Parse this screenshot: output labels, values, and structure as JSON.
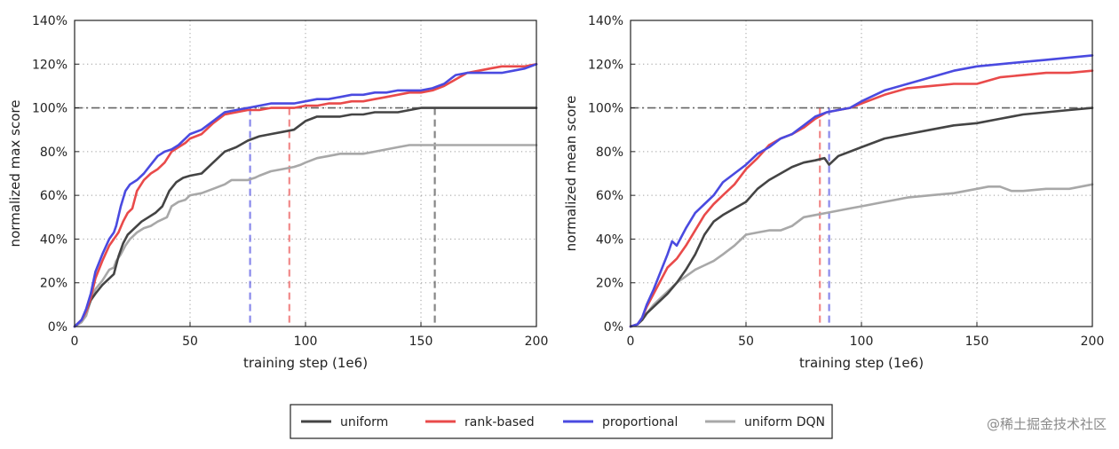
{
  "chart_data": [
    {
      "type": "line",
      "title": "",
      "xlabel": "training step (1e6)",
      "ylabel": "normalized max score",
      "xlim": [
        0,
        200
      ],
      "ylim": [
        0,
        140
      ],
      "xticks": [
        0,
        50,
        100,
        150,
        200
      ],
      "xtick_labels": [
        "0",
        "50",
        "100",
        "150",
        "200"
      ],
      "yticks": [
        0,
        20,
        40,
        60,
        80,
        100,
        120,
        140
      ],
      "ytick_labels": [
        "0%",
        "20%",
        "40%",
        "60%",
        "80%",
        "100%",
        "120%",
        "140%"
      ],
      "grid": true,
      "reference_line_y": 100,
      "series": [
        {
          "name": "uniform DQN",
          "color": "#a8a8a8",
          "x": [
            0,
            3,
            5,
            7,
            9,
            12,
            15,
            17,
            18,
            20,
            22,
            24,
            27,
            30,
            33,
            36,
            40,
            42,
            45,
            48,
            50,
            55,
            60,
            65,
            68,
            72,
            75,
            78,
            80,
            85,
            90,
            95,
            98,
            100,
            105,
            110,
            115,
            120,
            125,
            130,
            135,
            140,
            145,
            150,
            160,
            170,
            180,
            190,
            200
          ],
          "y": [
            0,
            2,
            5,
            12,
            17,
            21,
            26,
            27,
            30,
            33,
            37,
            40,
            43,
            45,
            46,
            48,
            50,
            55,
            57,
            58,
            60,
            61,
            63,
            65,
            67,
            67,
            67,
            68,
            69,
            71,
            72,
            73,
            74,
            75,
            77,
            78,
            79,
            79,
            79,
            80,
            81,
            82,
            83,
            83,
            83,
            83,
            83,
            83,
            83
          ]
        },
        {
          "name": "uniform",
          "color": "#444444",
          "x": [
            0,
            3,
            5,
            7,
            9,
            12,
            15,
            17,
            19,
            21,
            23,
            26,
            29,
            32,
            35,
            38,
            41,
            44,
            47,
            50,
            55,
            60,
            65,
            70,
            75,
            80,
            85,
            90,
            95,
            100,
            105,
            110,
            115,
            120,
            125,
            130,
            140,
            150,
            160,
            170,
            180,
            190,
            200
          ],
          "y": [
            0,
            3,
            7,
            12,
            15,
            19,
            22,
            24,
            32,
            38,
            42,
            45,
            48,
            50,
            52,
            55,
            62,
            66,
            68,
            69,
            70,
            75,
            80,
            82,
            85,
            87,
            88,
            89,
            90,
            94,
            96,
            96,
            96,
            97,
            97,
            98,
            98,
            100,
            100,
            100,
            100,
            100,
            100
          ]
        },
        {
          "name": "rank-based",
          "color": "#e94a4a",
          "x": [
            0,
            3,
            5,
            7,
            9,
            12,
            15,
            17,
            19,
            21,
            23,
            25,
            27,
            30,
            33,
            36,
            39,
            42,
            45,
            48,
            50,
            55,
            60,
            65,
            70,
            75,
            80,
            85,
            90,
            95,
            100,
            105,
            110,
            115,
            120,
            125,
            130,
            135,
            140,
            145,
            150,
            155,
            160,
            165,
            170,
            175,
            180,
            185,
            190,
            195,
            200
          ],
          "y": [
            0,
            3,
            7,
            13,
            22,
            30,
            37,
            40,
            43,
            48,
            52,
            54,
            62,
            67,
            70,
            72,
            75,
            80,
            82,
            84,
            86,
            88,
            93,
            97,
            98,
            99,
            99,
            100,
            100,
            100,
            101,
            101,
            102,
            102,
            103,
            103,
            104,
            105,
            106,
            107,
            107,
            108,
            110,
            113,
            116,
            117,
            118,
            119,
            119,
            119,
            120
          ]
        },
        {
          "name": "proportional",
          "color": "#4a4ae0",
          "x": [
            0,
            3,
            5,
            7,
            9,
            12,
            15,
            17,
            18,
            20,
            22,
            24,
            27,
            30,
            33,
            36,
            39,
            42,
            45,
            48,
            50,
            55,
            60,
            65,
            70,
            75,
            80,
            85,
            90,
            95,
            100,
            105,
            110,
            115,
            120,
            125,
            130,
            135,
            140,
            145,
            150,
            155,
            160,
            165,
            170,
            175,
            180,
            185,
            190,
            195,
            200
          ],
          "y": [
            0,
            3,
            8,
            15,
            25,
            33,
            40,
            43,
            46,
            55,
            62,
            65,
            67,
            70,
            74,
            78,
            80,
            81,
            83,
            86,
            88,
            90,
            94,
            98,
            99,
            100,
            101,
            102,
            102,
            102,
            103,
            104,
            104,
            105,
            106,
            106,
            107,
            107,
            108,
            108,
            108,
            109,
            111,
            115,
            116,
            116,
            116,
            116,
            117,
            118,
            120
          ]
        }
      ],
      "vertical_markers": [
        {
          "series": "proportional",
          "x": 76
        },
        {
          "series": "rank-based",
          "x": 93
        },
        {
          "series": "uniform",
          "x": 156
        }
      ]
    },
    {
      "type": "line",
      "title": "",
      "xlabel": "training step (1e6)",
      "ylabel": "normalized mean score",
      "xlim": [
        0,
        200
      ],
      "ylim": [
        0,
        140
      ],
      "xticks": [
        0,
        50,
        100,
        150,
        200
      ],
      "xtick_labels": [
        "0",
        "50",
        "100",
        "150",
        "200"
      ],
      "yticks": [
        0,
        20,
        40,
        60,
        80,
        100,
        120,
        140
      ],
      "ytick_labels": [
        "0%",
        "20%",
        "40%",
        "60%",
        "80%",
        "100%",
        "120%",
        "140%"
      ],
      "grid": true,
      "reference_line_y": 100,
      "series": [
        {
          "name": "uniform DQN",
          "color": "#a8a8a8",
          "x": [
            0,
            3,
            5,
            7,
            10,
            13,
            16,
            20,
            24,
            28,
            32,
            36,
            40,
            45,
            50,
            55,
            60,
            65,
            70,
            75,
            80,
            85,
            90,
            95,
            100,
            110,
            120,
            130,
            140,
            150,
            155,
            160,
            165,
            170,
            180,
            190,
            200
          ],
          "y": [
            0,
            1,
            3,
            6,
            10,
            13,
            16,
            20,
            23,
            26,
            28,
            30,
            33,
            37,
            42,
            43,
            44,
            44,
            46,
            50,
            51,
            52,
            53,
            54,
            55,
            57,
            59,
            60,
            61,
            63,
            64,
            64,
            62,
            62,
            63,
            63,
            65
          ]
        },
        {
          "name": "uniform",
          "color": "#444444",
          "x": [
            0,
            3,
            5,
            7,
            10,
            13,
            16,
            20,
            24,
            28,
            32,
            36,
            40,
            45,
            50,
            55,
            60,
            65,
            70,
            75,
            80,
            84,
            86,
            88,
            90,
            95,
            100,
            110,
            120,
            130,
            140,
            150,
            160,
            170,
            180,
            190,
            200
          ],
          "y": [
            0,
            1,
            3,
            6,
            9,
            12,
            15,
            20,
            26,
            33,
            42,
            48,
            51,
            54,
            57,
            63,
            67,
            70,
            73,
            75,
            76,
            77,
            74,
            76,
            78,
            80,
            82,
            86,
            88,
            90,
            92,
            93,
            95,
            97,
            98,
            99,
            100
          ]
        },
        {
          "name": "rank-based",
          "color": "#e94a4a",
          "x": [
            0,
            3,
            5,
            7,
            10,
            13,
            16,
            20,
            24,
            28,
            32,
            36,
            40,
            45,
            50,
            55,
            60,
            65,
            70,
            75,
            80,
            85,
            90,
            95,
            100,
            110,
            120,
            130,
            140,
            150,
            160,
            170,
            180,
            190,
            200
          ],
          "y": [
            0,
            1,
            4,
            9,
            15,
            21,
            27,
            31,
            37,
            44,
            51,
            56,
            60,
            65,
            72,
            77,
            83,
            86,
            88,
            91,
            95,
            98,
            99,
            100,
            102,
            106,
            109,
            110,
            111,
            111,
            114,
            115,
            116,
            116,
            117
          ]
        },
        {
          "name": "proportional",
          "color": "#4a4ae0",
          "x": [
            0,
            3,
            5,
            7,
            10,
            13,
            16,
            18,
            20,
            24,
            28,
            32,
            36,
            40,
            45,
            50,
            55,
            60,
            65,
            70,
            75,
            80,
            85,
            90,
            95,
            100,
            110,
            120,
            130,
            140,
            150,
            160,
            170,
            180,
            190,
            200
          ],
          "y": [
            0,
            1,
            4,
            10,
            17,
            25,
            33,
            39,
            37,
            45,
            52,
            56,
            60,
            66,
            70,
            74,
            79,
            82,
            86,
            88,
            92,
            96,
            98,
            99,
            100,
            103,
            108,
            111,
            114,
            117,
            119,
            120,
            121,
            122,
            123,
            124
          ]
        }
      ],
      "vertical_markers": [
        {
          "series": "rank-based",
          "x": 82
        },
        {
          "series": "proportional",
          "x": 86
        }
      ]
    }
  ],
  "legend": {
    "placement": "bottom-center",
    "items": [
      {
        "label": "uniform",
        "color": "#444444"
      },
      {
        "label": "rank-based",
        "color": "#e94a4a"
      },
      {
        "label": "proportional",
        "color": "#4a4ae0"
      },
      {
        "label": "uniform DQN",
        "color": "#a8a8a8"
      }
    ]
  },
  "watermark": "@稀土掘金技术社区"
}
